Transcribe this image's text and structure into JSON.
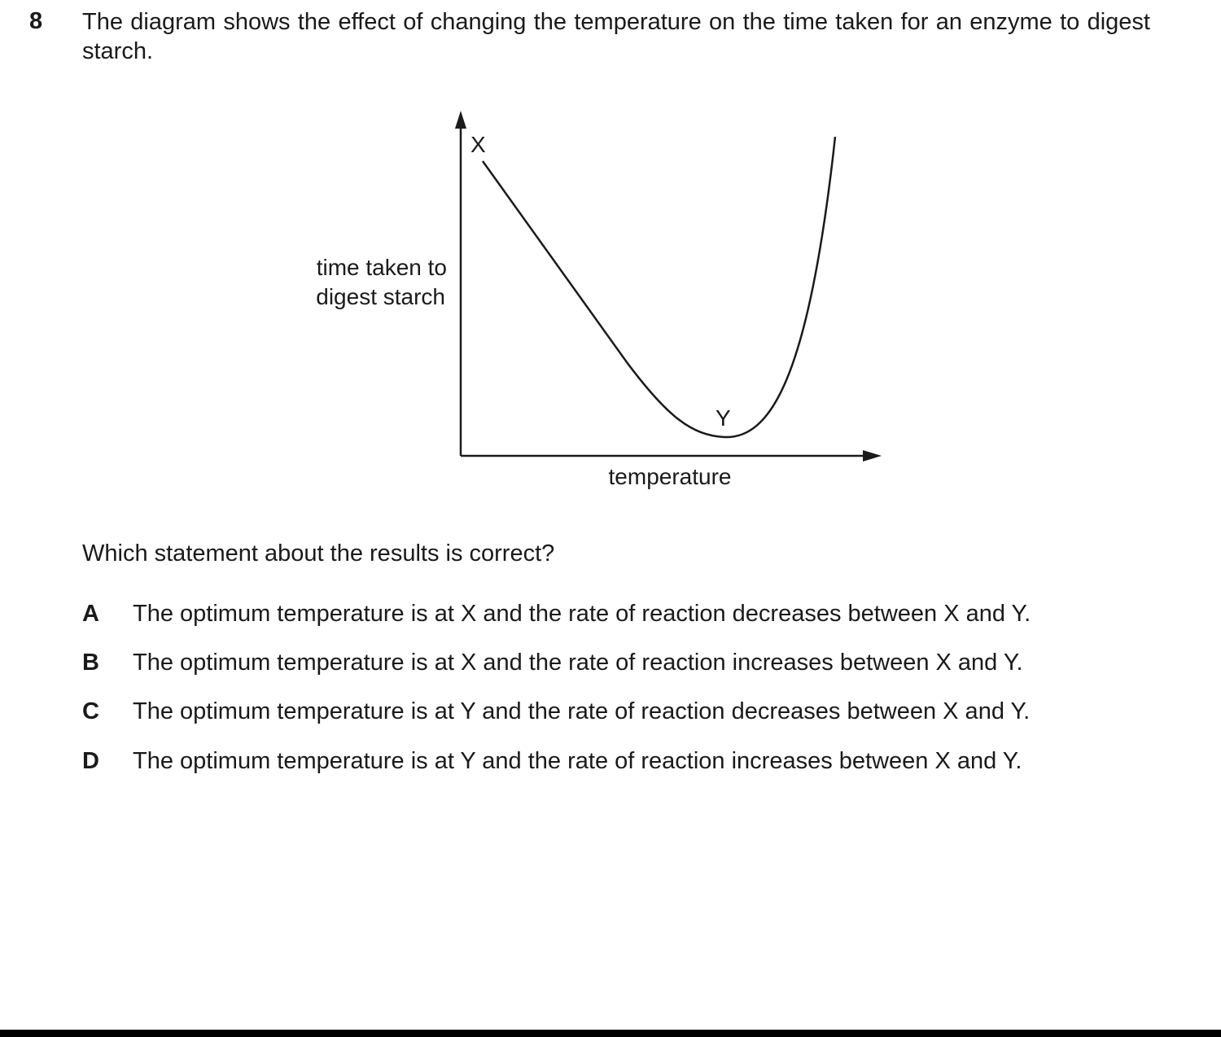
{
  "question": {
    "number": "8",
    "stem": "The diagram shows the effect of changing the temperature on the time taken for an enzyme to digest starch.",
    "prompt": "Which statement about the results is correct?"
  },
  "diagram": {
    "ylabel_line1": "time taken to",
    "ylabel_line2": "digest starch",
    "xlabel": "temperature",
    "point_x_label": "X",
    "point_y_label": "Y"
  },
  "options": [
    {
      "letter": "A",
      "text": "The optimum temperature is at X and the rate of reaction decreases between X and Y."
    },
    {
      "letter": "B",
      "text": "The optimum temperature is at X and the rate of reaction increases between X and Y."
    },
    {
      "letter": "C",
      "text": "The optimum temperature is at Y and the rate of reaction decreases between X and Y."
    },
    {
      "letter": "D",
      "text": "The optimum temperature is at Y and the rate of reaction increases between X and Y."
    }
  ]
}
